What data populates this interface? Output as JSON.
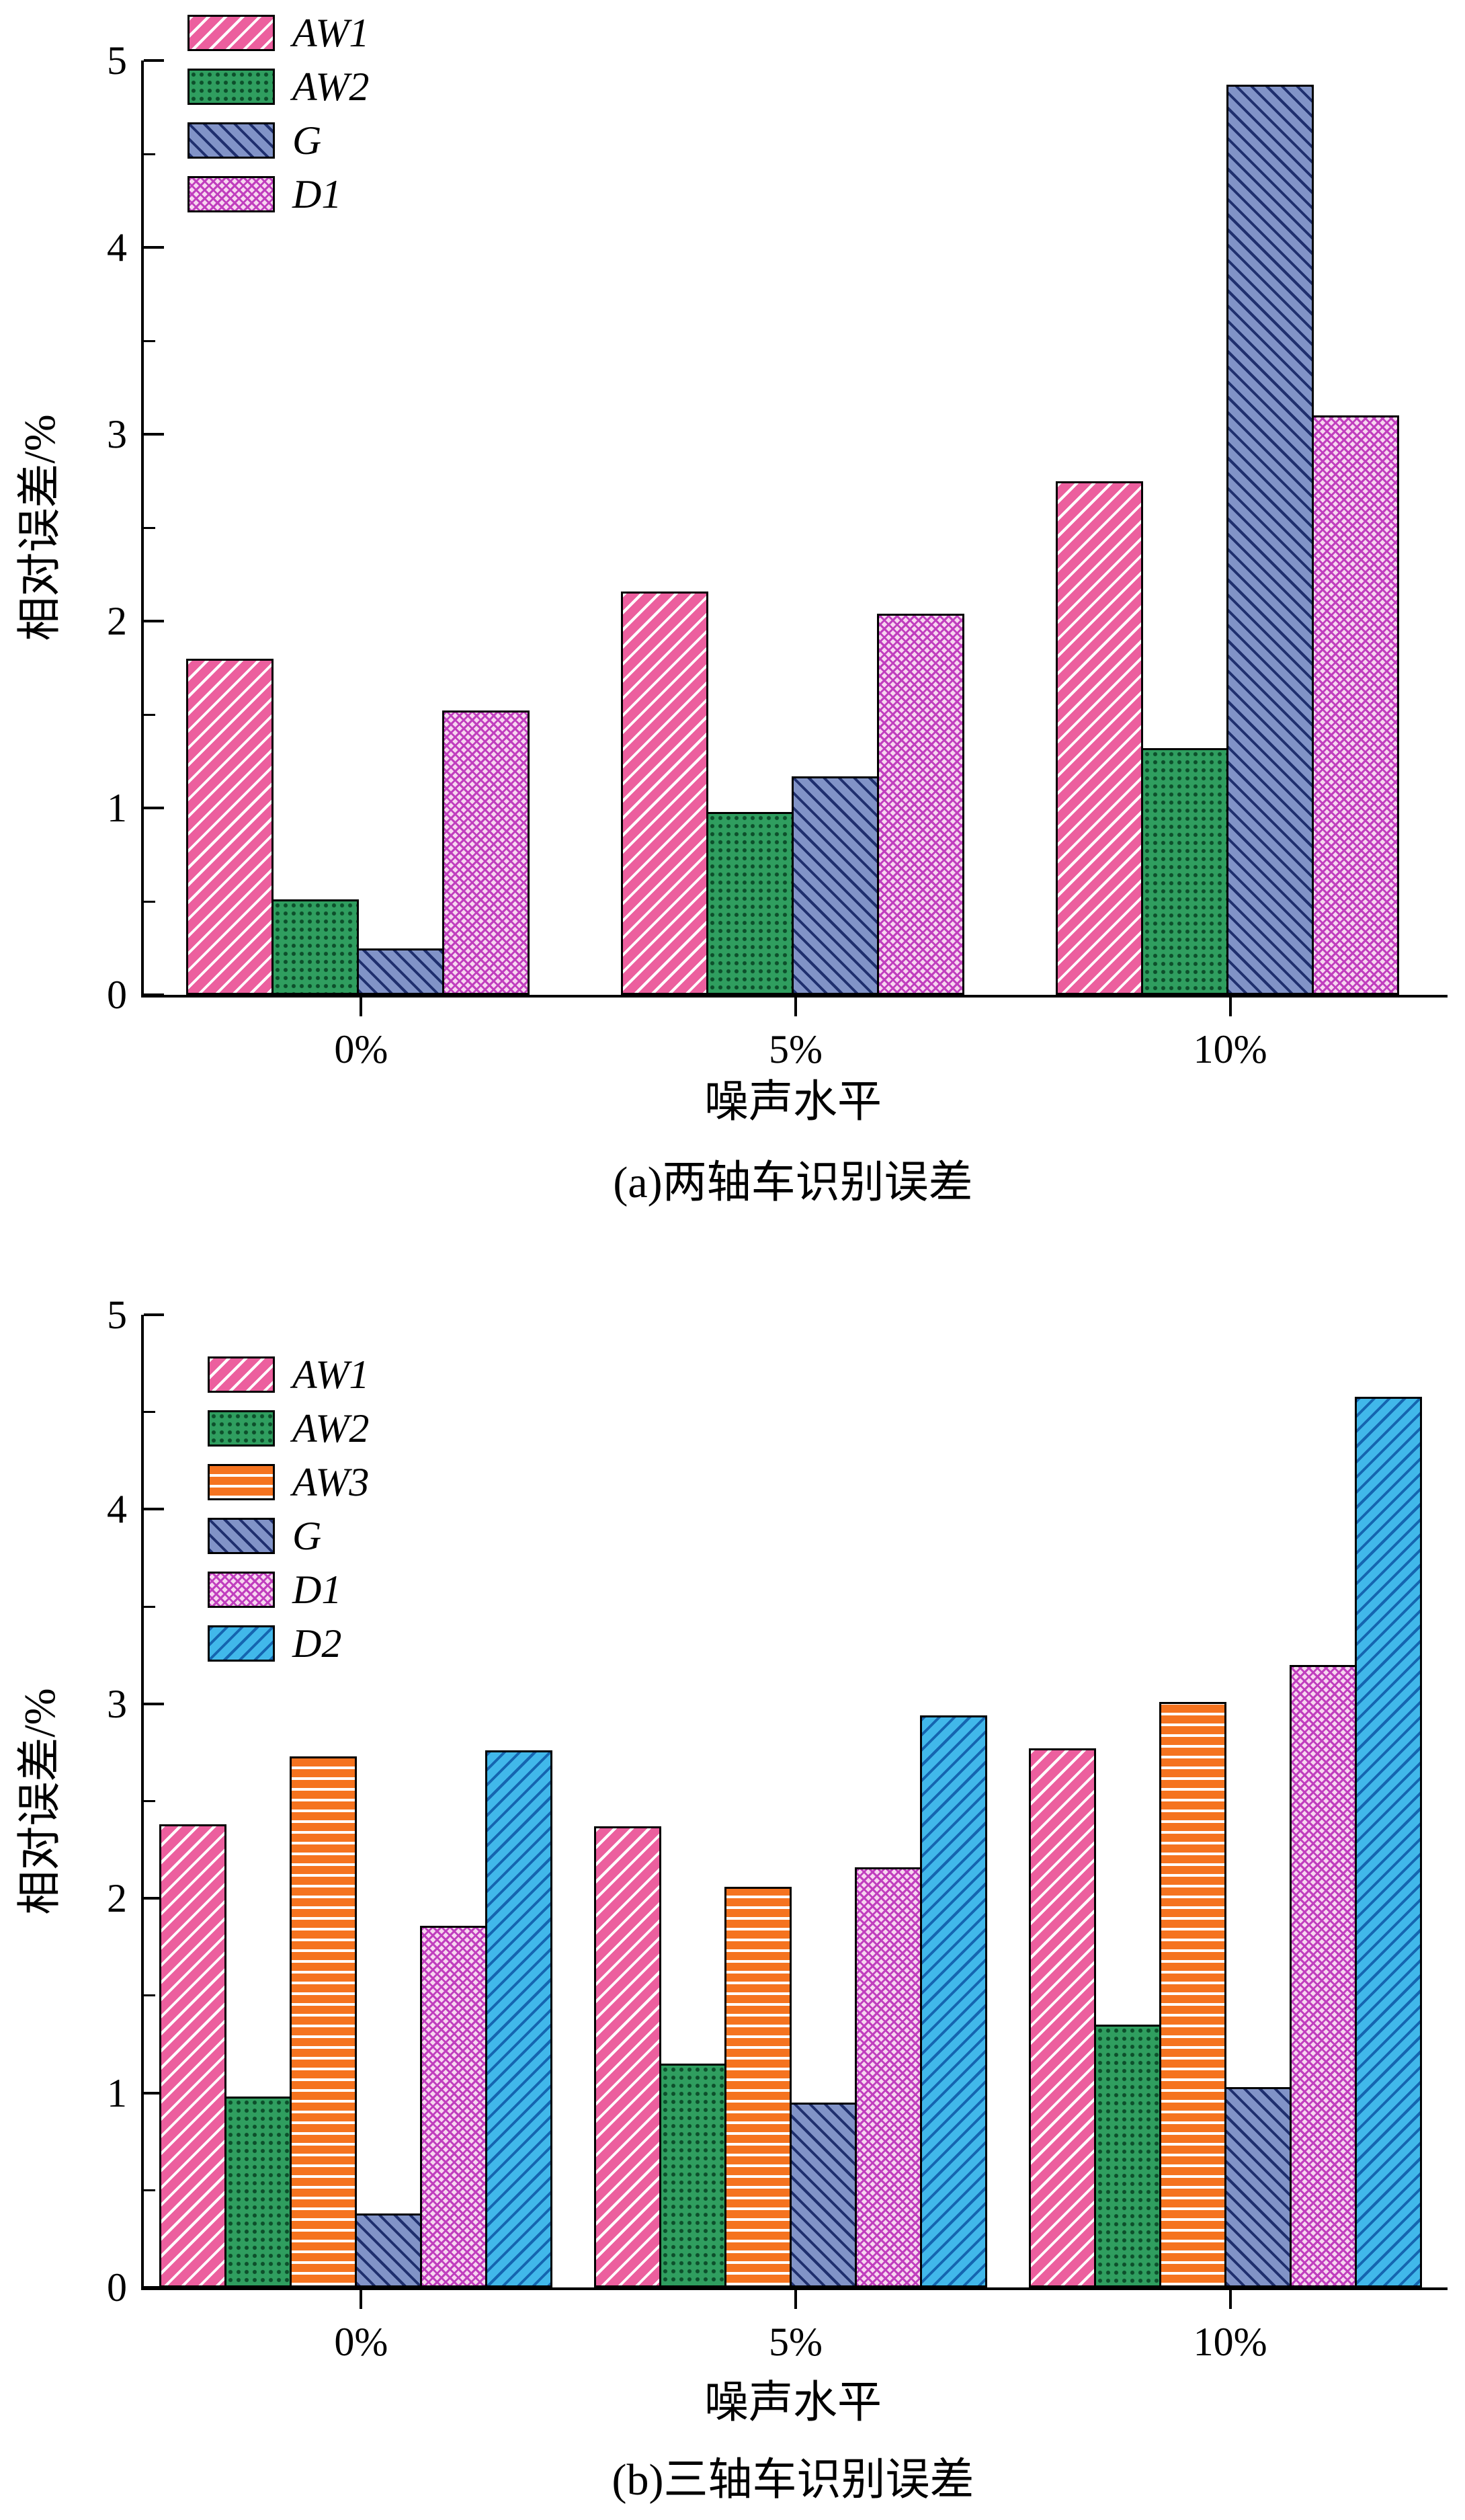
{
  "chart_data": [
    {
      "type": "bar",
      "caption": "(a)两轴车识别误差",
      "xlabel": "噪声水平",
      "ylabel": "相对误差/%",
      "ylim": [
        0,
        5
      ],
      "yticks": [
        0,
        1,
        2,
        3,
        4,
        5
      ],
      "minor_tick_step": 0.5,
      "grid": false,
      "legend_position": "top-left",
      "categories": [
        "0%",
        "5%",
        "10%"
      ],
      "series": [
        {
          "name": "AW1",
          "pattern": "aw1",
          "values": [
            1.8,
            2.16,
            2.75
          ]
        },
        {
          "name": "AW2",
          "pattern": "aw2",
          "values": [
            0.51,
            0.98,
            1.32
          ]
        },
        {
          "name": "G",
          "pattern": "g",
          "values": [
            0.25,
            1.17,
            4.87
          ]
        },
        {
          "name": "D1",
          "pattern": "d1",
          "values": [
            1.52,
            2.04,
            3.1
          ]
        }
      ]
    },
    {
      "type": "bar",
      "caption": "(b)三轴车识别误差",
      "xlabel": "噪声水平",
      "ylabel": "相对误差/%",
      "ylim": [
        0,
        5
      ],
      "yticks": [
        0,
        1,
        2,
        3,
        4,
        5
      ],
      "minor_tick_step": 0.5,
      "grid": false,
      "legend_position": "top-left",
      "categories": [
        "0%",
        "5%",
        "10%"
      ],
      "series": [
        {
          "name": "AW1",
          "pattern": "aw1",
          "values": [
            2.38,
            2.37,
            2.77
          ]
        },
        {
          "name": "AW2",
          "pattern": "aw2",
          "values": [
            0.98,
            1.15,
            1.35
          ]
        },
        {
          "name": "AW3",
          "pattern": "aw3",
          "values": [
            2.73,
            2.06,
            3.01
          ]
        },
        {
          "name": "G",
          "pattern": "g",
          "values": [
            0.38,
            0.95,
            1.03
          ]
        },
        {
          "name": "D1",
          "pattern": "d1",
          "values": [
            1.86,
            2.16,
            3.2
          ]
        },
        {
          "name": "D2",
          "pattern": "d2",
          "values": [
            2.76,
            2.94,
            4.58
          ]
        }
      ]
    }
  ],
  "colors": {
    "aw1": "#EC5F9E",
    "aw1_line": "#FFFFFF",
    "aw2": "#2F9E5F",
    "aw2_dot": "#0D4F2B",
    "aw3": "#F5731F",
    "aw3_line": "#FFFFFF",
    "g": "#8193C7",
    "g_line": "#1F2F6E",
    "d1_bg": "#F7D6EF",
    "d1_line": "#C03EBE",
    "d2": "#41B8EA",
    "d2_line": "#1565B0",
    "axis": "#000000",
    "text": "#000000"
  }
}
